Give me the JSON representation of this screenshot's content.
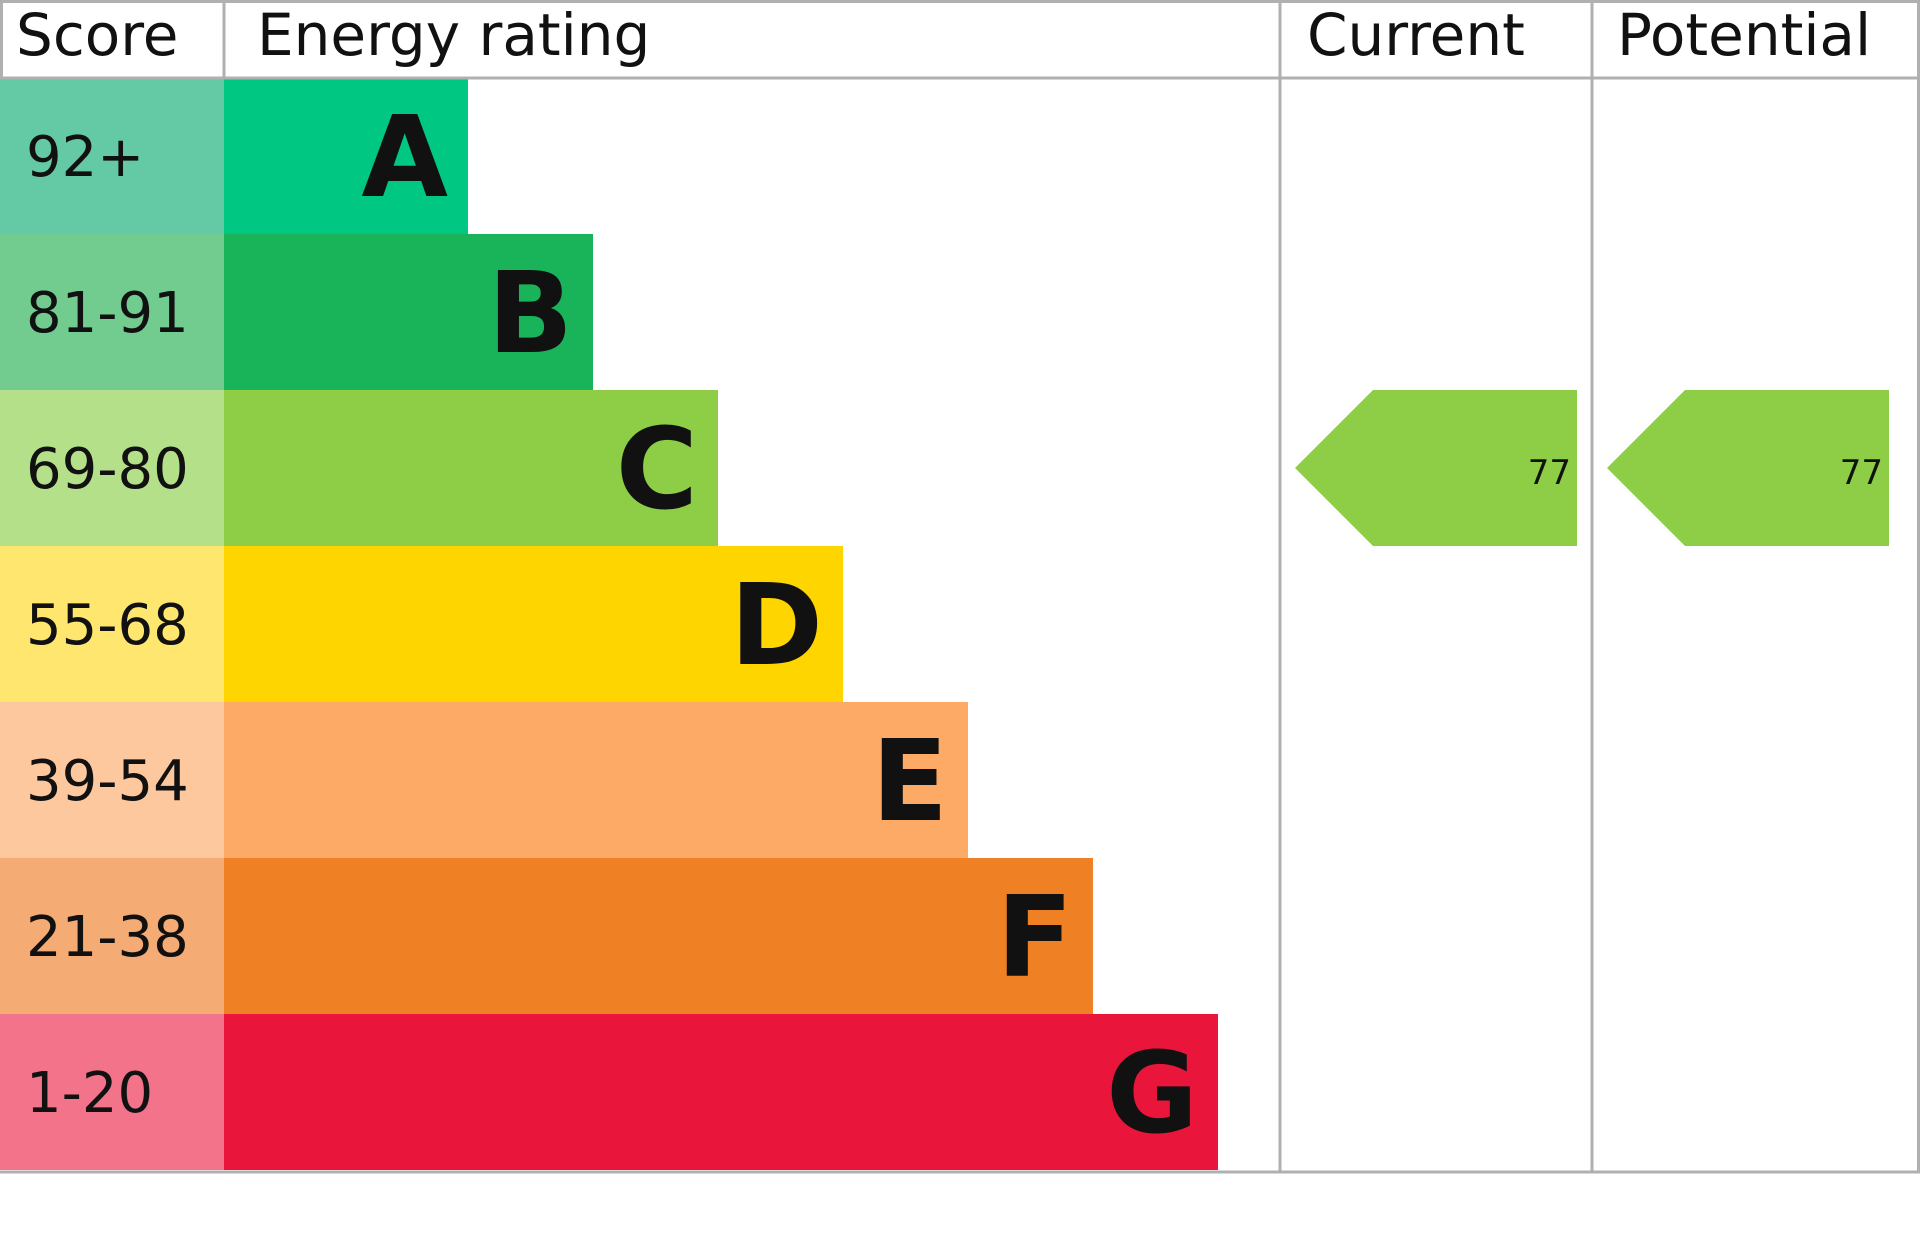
{
  "chart_data": {
    "type": "table",
    "headers": {
      "score": "Score",
      "rating": "Energy rating",
      "current": "Current",
      "potential": "Potential"
    },
    "bands": [
      {
        "score": "92+",
        "letter": "A",
        "bar_color": "#00c781",
        "score_color": "#64c9a5"
      },
      {
        "score": "81-91",
        "letter": "B",
        "bar_color": "#19b459",
        "score_color": "#72cc90"
      },
      {
        "score": "69-80",
        "letter": "C",
        "bar_color": "#8dce46",
        "score_color": "#b5e08a"
      },
      {
        "score": "55-68",
        "letter": "D",
        "bar_color": "#ffd500",
        "score_color": "#ffe66e"
      },
      {
        "score": "39-54",
        "letter": "E",
        "bar_color": "#fcaa65",
        "score_color": "#fec89e"
      },
      {
        "score": "21-38",
        "letter": "F",
        "bar_color": "#ef8023",
        "score_color": "#f4ab74"
      },
      {
        "score": "1-20",
        "letter": "G",
        "bar_color": "#e9153b",
        "score_color": "#f2738a"
      }
    ],
    "current": {
      "value": "77",
      "band": "C",
      "color": "#8dce46"
    },
    "potential": {
      "value": "77",
      "band": "C",
      "color": "#8dce46"
    }
  }
}
